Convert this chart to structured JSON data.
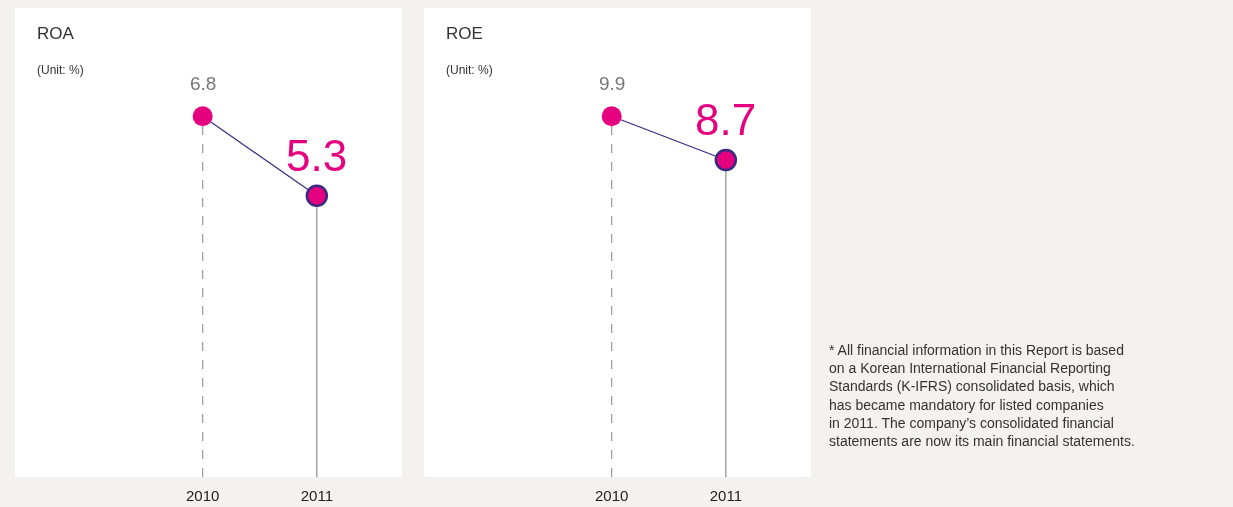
{
  "chart_data": [
    {
      "type": "lollipop",
      "title": "ROA",
      "subtitle": "(Unit: %)",
      "categories": [
        "2010",
        "2011"
      ],
      "data_labels": true,
      "marker": "circle",
      "tick_labels": "x",
      "series": [
        {
          "color": "#3b2a80",
          "colors": [
            "#e4007f",
            "#e4007f"
          ],
          "values": [
            6.8,
            5.3
          ]
        }
      ]
    },
    {
      "type": "lollipop",
      "title": "ROE",
      "subtitle": "(Unit: %)",
      "categories": [
        "2010",
        "2011"
      ],
      "data_labels": true,
      "marker": "circle",
      "tick_labels": "x",
      "series": [
        {
          "color": "#3b2a80",
          "colors": [
            "#e4007f",
            "#e4007f"
          ],
          "values": [
            9.9,
            8.7
          ]
        }
      ],
      "annotations": [
        "* All financial information in this Report is based\non a Korean International Financial Reporting\nStandards (K-IFRS) consolidated basis, which\nhas became mandatory for listed companies\nin 2011. The company’s consolidated financial\nstatements are now its main financial statements."
      ]
    }
  ]
}
